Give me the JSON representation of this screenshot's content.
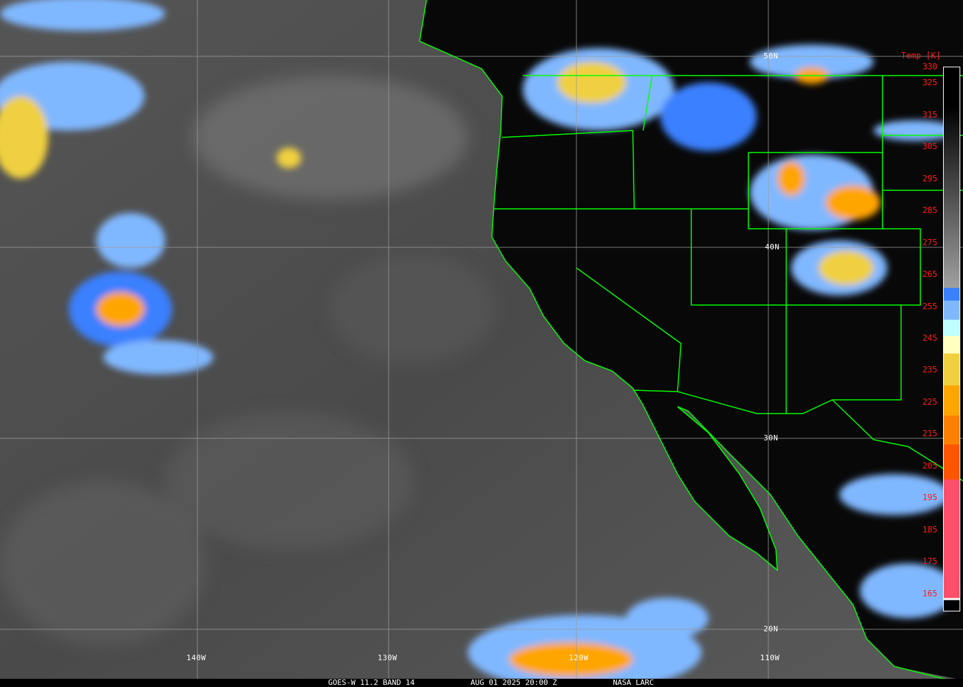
{
  "caption": {
    "product": "GOES-W 11.2 BAND 14",
    "datetime": "AUG 01 2025 20:00 Z",
    "source": "NASA LARC"
  },
  "latitude_labels": [
    "50N",
    "40N",
    "30N",
    "20N"
  ],
  "longitude_labels": [
    "140W",
    "130W",
    "120W",
    "110W"
  ],
  "colorbar": {
    "title": "Temp [K]",
    "ticks": [
      "330",
      "325",
      "315",
      "305",
      "295",
      "285",
      "275",
      "265",
      "255",
      "245",
      "235",
      "225",
      "215",
      "205",
      "195",
      "185",
      "175",
      "165"
    ],
    "range_K": [
      160,
      330
    ],
    "colors": {
      "warm": "#000000",
      "cold_gray": "#a0a0a0",
      "blue": "#3a80ff",
      "light_blue": "#80b8ff",
      "cyan": "#c0ffff",
      "cream": "#ffffc0",
      "yellow": "#f0d040",
      "orange": "#ffa500",
      "dark_orange": "#ff8000",
      "red_orange": "#ff5500",
      "pink": "#ff4f6a"
    }
  },
  "colors": {
    "borders": "#00ff00",
    "grid": "#9a9a9a",
    "label_text": "#ffffff",
    "colorbar_text": "#ff1a1a"
  }
}
